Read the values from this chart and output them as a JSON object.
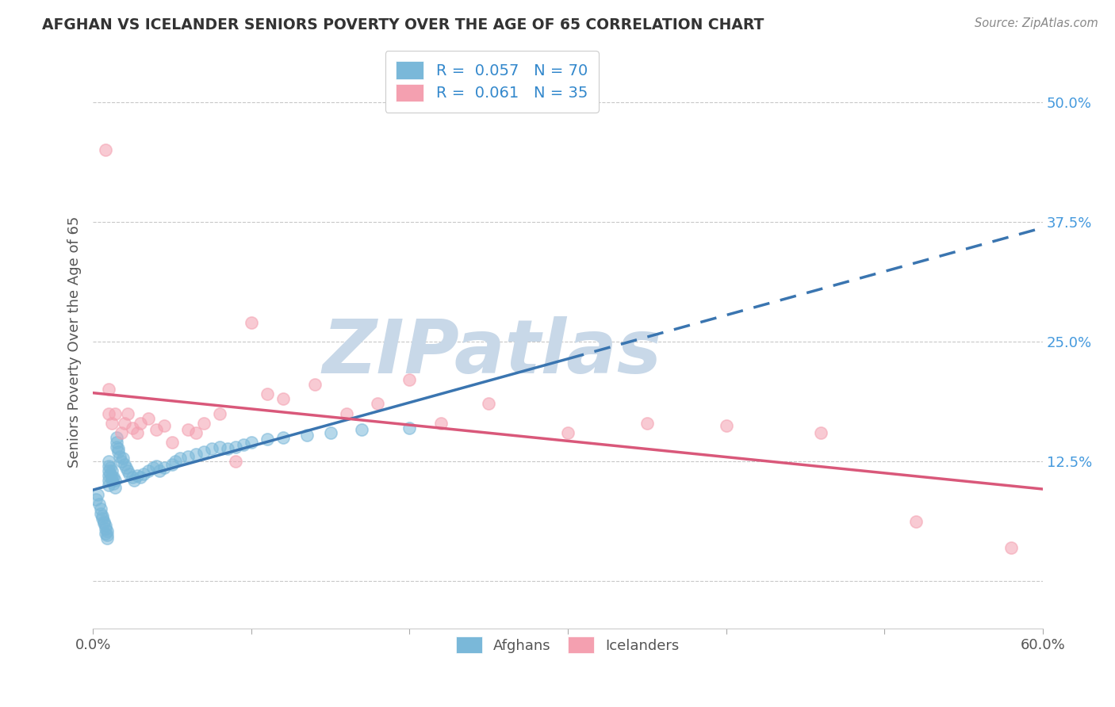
{
  "title": "AFGHAN VS ICELANDER SENIORS POVERTY OVER THE AGE OF 65 CORRELATION CHART",
  "source": "Source: ZipAtlas.com",
  "ylabel": "Seniors Poverty Over the Age of 65",
  "xlim": [
    0.0,
    0.6
  ],
  "ylim": [
    -0.05,
    0.55
  ],
  "xticks": [
    0.0,
    0.1,
    0.2,
    0.3,
    0.4,
    0.5,
    0.6
  ],
  "xticklabels": [
    "0.0%",
    "",
    "",
    "",
    "",
    "",
    "60.0%"
  ],
  "ytick_positions": [
    0.0,
    0.125,
    0.25,
    0.375,
    0.5
  ],
  "ytick_labels": [
    "",
    "12.5%",
    "25.0%",
    "37.5%",
    "50.0%"
  ],
  "afghan_color": "#7ab8d9",
  "icelander_color": "#f4a0b0",
  "afghan_line_color": "#3a75b0",
  "icelander_line_color": "#d9587a",
  "R_afghan": 0.057,
  "N_afghan": 70,
  "R_icelander": 0.061,
  "N_icelander": 35,
  "grid_color": "#c8c8c8",
  "background_color": "#ffffff",
  "watermark": "ZIPatlas",
  "watermark_color": "#c8d8e8",
  "afghan_x": [
    0.002,
    0.003,
    0.004,
    0.005,
    0.005,
    0.006,
    0.006,
    0.007,
    0.007,
    0.008,
    0.008,
    0.008,
    0.009,
    0.009,
    0.009,
    0.01,
    0.01,
    0.01,
    0.01,
    0.01,
    0.01,
    0.011,
    0.011,
    0.012,
    0.012,
    0.012,
    0.013,
    0.013,
    0.014,
    0.014,
    0.015,
    0.015,
    0.015,
    0.016,
    0.016,
    0.017,
    0.018,
    0.019,
    0.02,
    0.021,
    0.022,
    0.023,
    0.025,
    0.026,
    0.028,
    0.03,
    0.032,
    0.035,
    0.038,
    0.04,
    0.042,
    0.045,
    0.05,
    0.052,
    0.055,
    0.06,
    0.065,
    0.07,
    0.075,
    0.08,
    0.085,
    0.09,
    0.095,
    0.1,
    0.11,
    0.12,
    0.135,
    0.15,
    0.17,
    0.2
  ],
  "afghan_y": [
    0.085,
    0.09,
    0.08,
    0.075,
    0.07,
    0.065,
    0.068,
    0.06,
    0.062,
    0.055,
    0.058,
    0.05,
    0.052,
    0.048,
    0.045,
    0.1,
    0.105,
    0.11,
    0.115,
    0.12,
    0.125,
    0.112,
    0.118,
    0.105,
    0.108,
    0.115,
    0.102,
    0.108,
    0.098,
    0.105,
    0.145,
    0.14,
    0.15,
    0.135,
    0.138,
    0.13,
    0.125,
    0.128,
    0.122,
    0.118,
    0.115,
    0.112,
    0.108,
    0.105,
    0.11,
    0.108,
    0.112,
    0.115,
    0.118,
    0.12,
    0.115,
    0.118,
    0.122,
    0.125,
    0.128,
    0.13,
    0.132,
    0.135,
    0.138,
    0.14,
    0.138,
    0.14,
    0.142,
    0.145,
    0.148,
    0.15,
    0.152,
    0.155,
    0.158,
    0.16
  ],
  "icelander_x": [
    0.008,
    0.01,
    0.01,
    0.012,
    0.014,
    0.018,
    0.02,
    0.022,
    0.025,
    0.028,
    0.03,
    0.035,
    0.04,
    0.045,
    0.05,
    0.06,
    0.065,
    0.07,
    0.08,
    0.09,
    0.1,
    0.11,
    0.12,
    0.14,
    0.16,
    0.18,
    0.2,
    0.22,
    0.25,
    0.3,
    0.35,
    0.4,
    0.46,
    0.52,
    0.58
  ],
  "icelander_y": [
    0.45,
    0.2,
    0.175,
    0.165,
    0.175,
    0.155,
    0.165,
    0.175,
    0.16,
    0.155,
    0.165,
    0.17,
    0.158,
    0.162,
    0.145,
    0.158,
    0.155,
    0.165,
    0.175,
    0.125,
    0.27,
    0.195,
    0.19,
    0.205,
    0.175,
    0.185,
    0.21,
    0.165,
    0.185,
    0.155,
    0.165,
    0.162,
    0.155,
    0.062,
    0.035
  ]
}
